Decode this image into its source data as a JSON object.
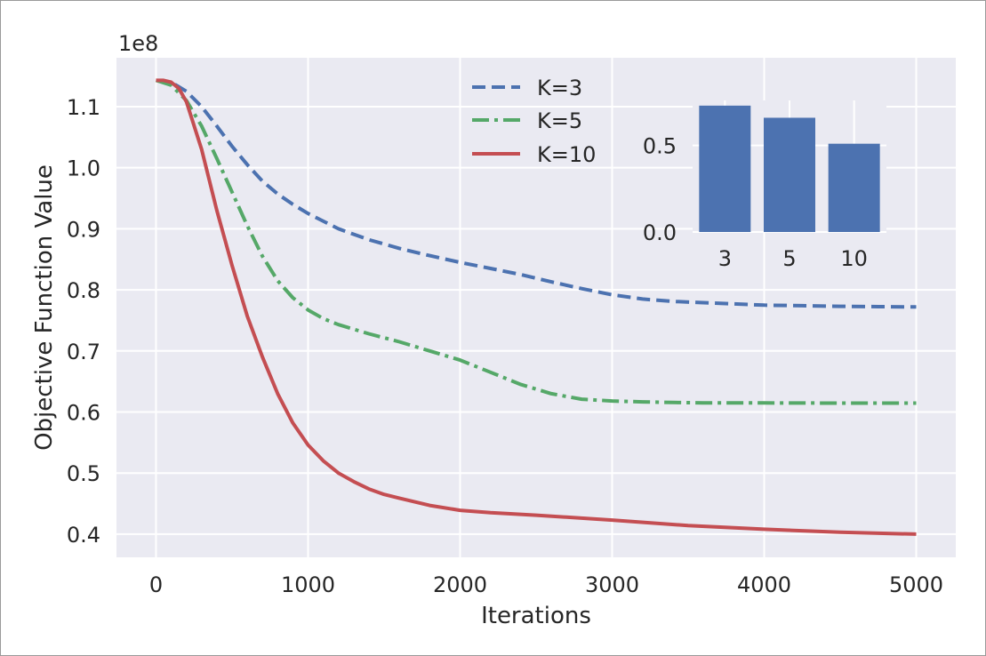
{
  "chart_data": [
    {
      "type": "line",
      "title": "",
      "xlabel": "Iterations",
      "ylabel": "Objective Function Value",
      "y_multiplier_label": "1e8",
      "xlim": [
        -260,
        5260
      ],
      "ylim": [
        0.362,
        1.18
      ],
      "x_ticks": [
        0,
        1000,
        2000,
        3000,
        4000,
        5000
      ],
      "x_tick_labels": [
        "0",
        "1000",
        "2000",
        "3000",
        "4000",
        "5000"
      ],
      "y_ticks": [
        0.4,
        0.5,
        0.6,
        0.7,
        0.8,
        0.9,
        1.0,
        1.1
      ],
      "y_tick_labels": [
        "0.4",
        "0.5",
        "0.6",
        "0.7",
        "0.8",
        "0.9",
        "1.0",
        "1.1"
      ],
      "grid": true,
      "legend_position": "top-center",
      "series": [
        {
          "name": "K=3",
          "color": "#4c72b0",
          "style": "dashed",
          "x": [
            0,
            100,
            200,
            300,
            400,
            500,
            600,
            700,
            800,
            900,
            1000,
            1200,
            1400,
            1600,
            1800,
            2000,
            2200,
            2400,
            2600,
            2800,
            3000,
            3200,
            3400,
            3600,
            3800,
            4000,
            4250,
            4500,
            4750,
            5000
          ],
          "values": [
            1.143,
            1.14,
            1.125,
            1.1,
            1.068,
            1.035,
            1.005,
            0.978,
            0.957,
            0.94,
            0.925,
            0.9,
            0.882,
            0.868,
            0.856,
            0.845,
            0.835,
            0.825,
            0.813,
            0.802,
            0.792,
            0.785,
            0.781,
            0.779,
            0.777,
            0.775,
            0.774,
            0.773,
            0.7725,
            0.772
          ]
        },
        {
          "name": "K=5",
          "color": "#55a868",
          "style": "dashdot",
          "x": [
            0,
            100,
            200,
            300,
            400,
            500,
            600,
            700,
            800,
            900,
            1000,
            1100,
            1200,
            1400,
            1600,
            1800,
            2000,
            2200,
            2400,
            2600,
            2800,
            3000,
            3200,
            3400,
            3600,
            3800,
            4000,
            4250,
            4500,
            4750,
            5000
          ],
          "values": [
            1.143,
            1.135,
            1.11,
            1.068,
            1.015,
            0.96,
            0.905,
            0.855,
            0.815,
            0.787,
            0.767,
            0.753,
            0.743,
            0.728,
            0.715,
            0.7,
            0.685,
            0.665,
            0.645,
            0.63,
            0.621,
            0.618,
            0.6165,
            0.6155,
            0.615,
            0.615,
            0.6148,
            0.6147,
            0.6146,
            0.6145,
            0.6145
          ]
        },
        {
          "name": "K=10",
          "color": "#c44e52",
          "style": "solid",
          "x": [
            0,
            50,
            100,
            150,
            200,
            300,
            400,
            500,
            600,
            700,
            800,
            900,
            1000,
            1100,
            1200,
            1300,
            1400,
            1500,
            1600,
            1800,
            2000,
            2200,
            2500,
            3000,
            3500,
            4000,
            4500,
            5000
          ],
          "values": [
            1.143,
            1.143,
            1.14,
            1.13,
            1.108,
            1.03,
            0.93,
            0.84,
            0.757,
            0.69,
            0.63,
            0.582,
            0.546,
            0.52,
            0.5,
            0.486,
            0.474,
            0.465,
            0.459,
            0.447,
            0.439,
            0.435,
            0.431,
            0.423,
            0.414,
            0.408,
            0.403,
            0.4
          ]
        }
      ]
    },
    {
      "type": "bar",
      "title": "",
      "xlabel": "",
      "ylabel": "",
      "categories": [
        "3",
        "5",
        "10"
      ],
      "values": [
        0.73,
        0.66,
        0.51
      ],
      "ylim": [
        0,
        0.76
      ],
      "y_ticks": [
        0.0,
        0.5
      ],
      "y_tick_labels": [
        "0.0",
        "0.5"
      ],
      "color": "#4c72b0",
      "grid": true
    }
  ]
}
